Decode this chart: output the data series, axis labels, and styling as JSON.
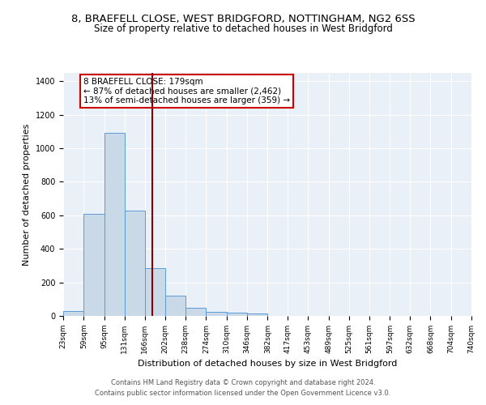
{
  "title_line1": "8, BRAEFELL CLOSE, WEST BRIDGFORD, NOTTINGHAM, NG2 6SS",
  "title_line2": "Size of property relative to detached houses in West Bridgford",
  "xlabel": "Distribution of detached houses by size in West Bridgford",
  "ylabel": "Number of detached properties",
  "footnote1": "Contains HM Land Registry data © Crown copyright and database right 2024.",
  "footnote2": "Contains public sector information licensed under the Open Government Licence v3.0.",
  "annotation_line1": "8 BRAEFELL CLOSE: 179sqm",
  "annotation_line2": "← 87% of detached houses are smaller (2,462)",
  "annotation_line3": "13% of semi-detached houses are larger (359) →",
  "bar_color": "#c9d9e8",
  "bar_edge_color": "#5b9bd5",
  "vline_color": "#8b0000",
  "vline_x": 179,
  "bin_edges": [
    23,
    59,
    95,
    131,
    166,
    202,
    238,
    274,
    310,
    346,
    382,
    417,
    453,
    489,
    525,
    561,
    597,
    632,
    668,
    704,
    740
  ],
  "bar_heights": [
    30,
    610,
    1090,
    630,
    285,
    120,
    48,
    22,
    20,
    13,
    0,
    0,
    0,
    0,
    0,
    0,
    0,
    0,
    0,
    0
  ],
  "ylim": [
    0,
    1450
  ],
  "yticks": [
    0,
    200,
    400,
    600,
    800,
    1000,
    1200,
    1400
  ],
  "bg_color": "#eaf0f8",
  "grid_color": "#ffffff",
  "title1_fontsize": 9.5,
  "title2_fontsize": 8.5,
  "footnote_fontsize": 6.0,
  "xlabel_fontsize": 8,
  "ylabel_fontsize": 8,
  "tick_fontsize": 6.5,
  "annotation_fontsize": 7.5
}
